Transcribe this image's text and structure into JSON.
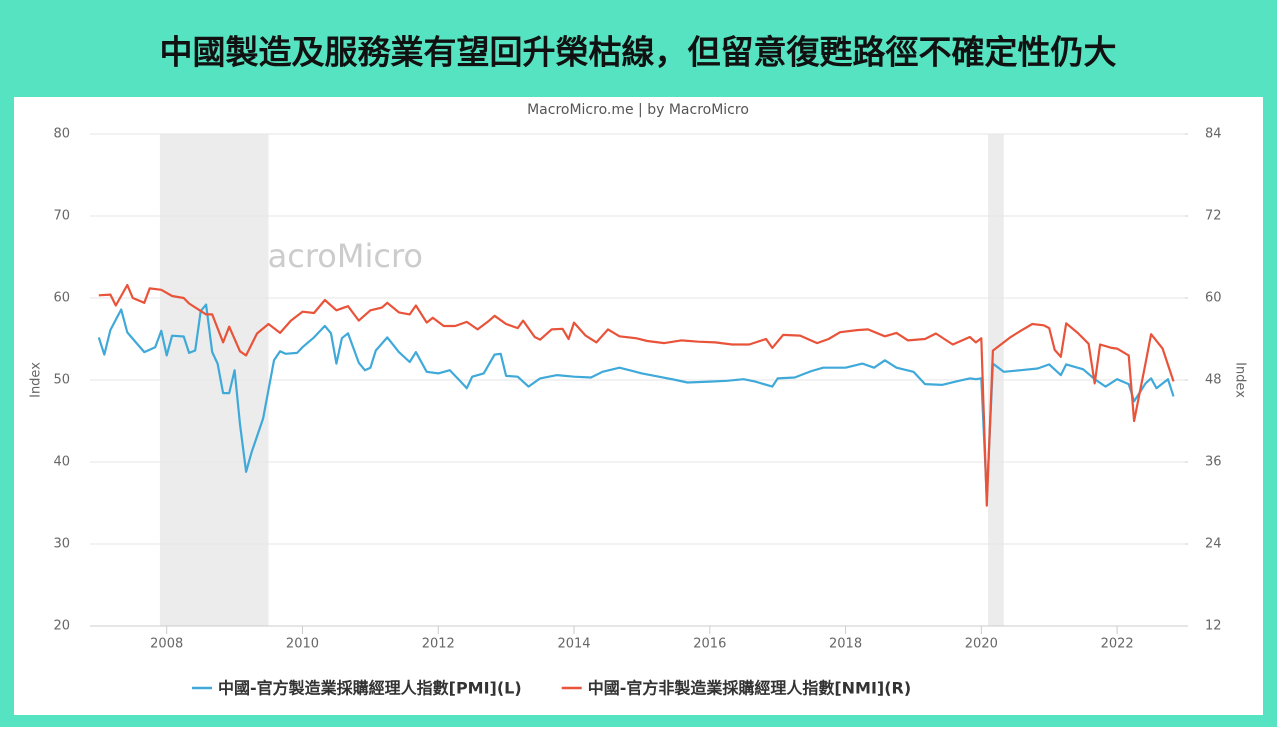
{
  "chart_data": {
    "type": "line",
    "title": "中國製造及服務業有望回升榮枯線，但留意復甦路徑不確定性仍大",
    "subtitle": "MacroMicro.me | by MacroMicro",
    "watermark": "MacroMicro",
    "ylabel": "Index",
    "y2label": "Index",
    "xlim": [
      2006.87,
      2023.0
    ],
    "xticks": [
      2008,
      2010,
      2012,
      2014,
      2016,
      2018,
      2020,
      2022
    ],
    "ylim": [
      20,
      80
    ],
    "yticks": [
      20,
      30,
      40,
      50,
      60,
      70,
      80
    ],
    "y2lim": [
      12,
      84
    ],
    "y2ticks": [
      12,
      24,
      36,
      48,
      60,
      72,
      84
    ],
    "grid": true,
    "shaded_ranges": [
      [
        2007.9,
        2009.5
      ],
      [
        2020.1,
        2020.33
      ]
    ],
    "series": [
      {
        "name": "中國-官方製造業採購經理人指數[PMI](L)",
        "color": "#3fa9d9",
        "axis": "y",
        "x": [
          2007.0,
          2007.08,
          2007.17,
          2007.33,
          2007.42,
          2007.67,
          2007.83,
          2007.92,
          2008.0,
          2008.08,
          2008.25,
          2008.33,
          2008.42,
          2008.5,
          2008.58,
          2008.67,
          2008.75,
          2008.83,
          2008.92,
          2009.0,
          2009.08,
          2009.17,
          2009.25,
          2009.42,
          2009.58,
          2009.67,
          2009.75,
          2009.92,
          2010.0,
          2010.17,
          2010.33,
          2010.42,
          2010.5,
          2010.58,
          2010.67,
          2010.83,
          2010.92,
          2011.0,
          2011.08,
          2011.25,
          2011.42,
          2011.58,
          2011.67,
          2011.83,
          2012.0,
          2012.17,
          2012.33,
          2012.42,
          2012.5,
          2012.67,
          2012.83,
          2012.92,
          2013.0,
          2013.17,
          2013.33,
          2013.5,
          2013.75,
          2014.0,
          2014.25,
          2014.42,
          2014.67,
          2015.0,
          2015.25,
          2015.5,
          2015.67,
          2016.0,
          2016.25,
          2016.5,
          2016.67,
          2016.92,
          2017.0,
          2017.25,
          2017.5,
          2017.67,
          2018.0,
          2018.25,
          2018.42,
          2018.58,
          2018.75,
          2019.0,
          2019.17,
          2019.42,
          2019.67,
          2019.83,
          2019.92,
          2020.0,
          2020.08,
          2020.17,
          2020.33,
          2020.58,
          2020.83,
          2021.0,
          2021.17,
          2021.25,
          2021.5,
          2021.67,
          2021.83,
          2022.0,
          2022.17,
          2022.25,
          2022.42,
          2022.5,
          2022.58,
          2022.75,
          2022.83
        ],
        "values": [
          55.2,
          53.1,
          56.1,
          58.6,
          55.8,
          53.4,
          54.0,
          56.0,
          53.0,
          55.4,
          55.3,
          53.3,
          53.6,
          58.4,
          59.2,
          53.4,
          52.0,
          48.4,
          48.4,
          51.2,
          44.6,
          38.8,
          41.2,
          45.3,
          52.4,
          53.5,
          53.2,
          53.3,
          54.0,
          55.2,
          56.6,
          55.7,
          52.0,
          55.1,
          55.7,
          52.1,
          51.2,
          51.5,
          53.6,
          55.2,
          53.4,
          52.2,
          53.4,
          51.0,
          50.8,
          51.2,
          49.8,
          49.0,
          50.4,
          50.8,
          53.1,
          53.2,
          50.5,
          50.4,
          49.2,
          50.2,
          50.6,
          50.4,
          50.3,
          51.0,
          51.5,
          50.8,
          50.4,
          50.0,
          49.7,
          49.8,
          49.9,
          50.1,
          49.8,
          49.2,
          50.2,
          50.3,
          51.1,
          51.5,
          51.5,
          52.0,
          51.5,
          52.4,
          51.5,
          51.0,
          49.5,
          49.4,
          49.9,
          50.2,
          50.1,
          50.2,
          35.7,
          52.0,
          51.0,
          51.2,
          51.4,
          51.9,
          50.6,
          51.9,
          51.3,
          50.1,
          49.2,
          50.1,
          49.5,
          47.4,
          49.6,
          50.2,
          49.0,
          50.1,
          48.0
        ]
      },
      {
        "name": "中國-官方非製造業採購經理人指數[NMI](R)",
        "color": "#e8533a",
        "axis": "y2",
        "x": [
          2007.0,
          2007.17,
          2007.25,
          2007.42,
          2007.5,
          2007.67,
          2007.75,
          2007.92,
          2008.08,
          2008.25,
          2008.33,
          2008.58,
          2008.67,
          2008.83,
          2008.92,
          2009.08,
          2009.17,
          2009.33,
          2009.5,
          2009.67,
          2009.83,
          2010.0,
          2010.17,
          2010.33,
          2010.5,
          2010.67,
          2010.83,
          2011.0,
          2011.17,
          2011.25,
          2011.42,
          2011.58,
          2011.67,
          2011.83,
          2011.92,
          2012.08,
          2012.25,
          2012.42,
          2012.58,
          2012.75,
          2012.83,
          2013.0,
          2013.17,
          2013.25,
          2013.42,
          2013.5,
          2013.67,
          2013.83,
          2013.92,
          2014.0,
          2014.17,
          2014.33,
          2014.5,
          2014.67,
          2014.92,
          2015.08,
          2015.33,
          2015.58,
          2015.83,
          2016.08,
          2016.33,
          2016.58,
          2016.83,
          2016.92,
          2017.08,
          2017.33,
          2017.58,
          2017.75,
          2017.92,
          2018.17,
          2018.33,
          2018.58,
          2018.75,
          2018.92,
          2019.17,
          2019.33,
          2019.58,
          2019.83,
          2019.92,
          2020.0,
          2020.08,
          2020.17,
          2020.42,
          2020.58,
          2020.75,
          2020.92,
          2021.0,
          2021.08,
          2021.17,
          2021.25,
          2021.42,
          2021.58,
          2021.67,
          2021.75,
          2021.92,
          2022.0,
          2022.17,
          2022.25,
          2022.42,
          2022.5,
          2022.67,
          2022.83
        ],
        "values": [
          60.4,
          60.5,
          58.9,
          61.9,
          60.0,
          59.3,
          61.4,
          61.2,
          60.3,
          60.0,
          59.2,
          57.6,
          57.6,
          53.5,
          55.8,
          52.2,
          51.6,
          54.8,
          56.2,
          54.9,
          56.7,
          58.0,
          57.8,
          59.7,
          58.2,
          58.8,
          56.7,
          58.2,
          58.6,
          59.3,
          57.9,
          57.6,
          58.9,
          56.4,
          57.1,
          55.9,
          55.9,
          56.5,
          55.4,
          56.7,
          57.4,
          56.2,
          55.6,
          56.7,
          54.3,
          53.9,
          55.4,
          55.5,
          54.0,
          56.4,
          54.5,
          53.5,
          55.4,
          54.4,
          54.1,
          53.7,
          53.4,
          53.8,
          53.6,
          53.5,
          53.2,
          53.2,
          54.0,
          52.7,
          54.6,
          54.5,
          53.4,
          54.0,
          55.0,
          55.3,
          55.4,
          54.4,
          54.9,
          53.8,
          54.0,
          54.8,
          53.2,
          54.3,
          53.5,
          54.1,
          29.6,
          52.3,
          54.2,
          55.2,
          56.2,
          56.0,
          55.6,
          52.4,
          51.4,
          56.3,
          54.9,
          53.3,
          47.5,
          53.2,
          52.7,
          52.6,
          51.6,
          42.0,
          50.5,
          54.7,
          52.6,
          47.8
        ]
      }
    ]
  }
}
